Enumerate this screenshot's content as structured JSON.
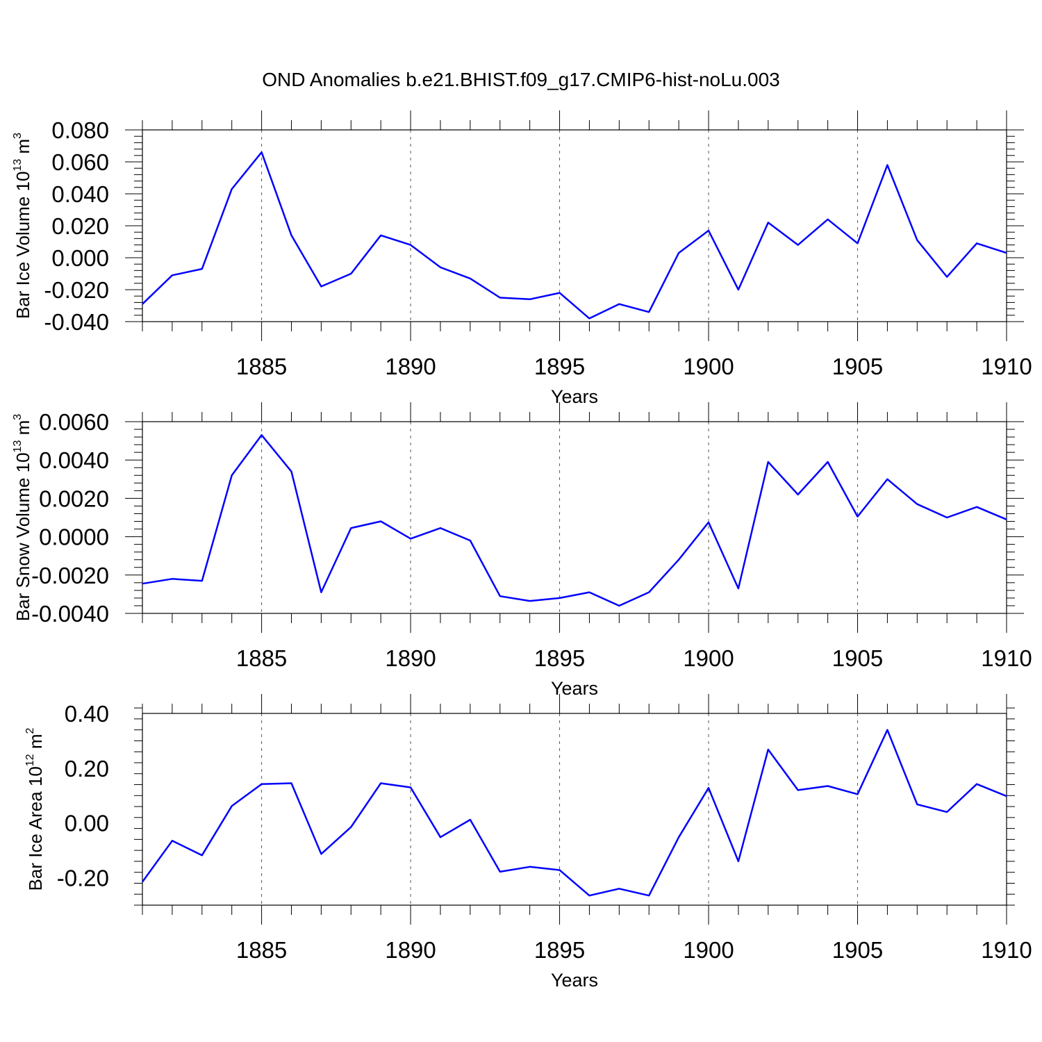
{
  "title": "OND Anomalies b.e21.BHIST.f09_g17.CMIP6-hist-noLu.003",
  "colors": {
    "line": "#0000ff",
    "axis": "#000000",
    "grid": "#555555"
  },
  "chart_data": [
    {
      "type": "line",
      "ylabel_text": "Bar Ice Volume 10",
      "ylabel_exp": "13",
      "ylabel_unit": "m",
      "ylabel_unit_exp": "3",
      "xlabel": "Years",
      "xlim": [
        1881,
        1910
      ],
      "ylim": [
        -0.04,
        0.08
      ],
      "yticks": [
        -0.04,
        -0.02,
        0.0,
        0.02,
        0.04,
        0.06,
        0.08
      ],
      "ytick_labels": [
        "-0.040",
        "-0.020",
        "0.000",
        "0.020",
        "0.040",
        "0.060",
        "0.080"
      ],
      "xticks": [
        1885,
        1890,
        1895,
        1900,
        1905,
        1910
      ],
      "xtick_labels": [
        "1885",
        "1890",
        "1895",
        "1900",
        "1905",
        "1910"
      ],
      "grid_x": [
        1885,
        1890,
        1895,
        1900,
        1905
      ],
      "x": [
        1881,
        1882,
        1883,
        1884,
        1885,
        1886,
        1887,
        1888,
        1889,
        1890,
        1891,
        1892,
        1893,
        1894,
        1895,
        1896,
        1897,
        1898,
        1899,
        1900,
        1901,
        1902,
        1903,
        1904,
        1905,
        1906,
        1907,
        1908,
        1909,
        1910
      ],
      "values": [
        -0.029,
        -0.011,
        -0.007,
        0.043,
        0.066,
        0.014,
        -0.018,
        -0.01,
        0.014,
        0.008,
        -0.006,
        -0.013,
        -0.025,
        -0.026,
        -0.022,
        -0.038,
        -0.029,
        -0.034,
        0.003,
        0.017,
        -0.02,
        0.022,
        0.008,
        0.024,
        0.009,
        0.058,
        0.011,
        -0.012,
        0.009,
        0.003
      ]
    },
    {
      "type": "line",
      "ylabel_text": "Bar Snow Volume 10",
      "ylabel_exp": "13",
      "ylabel_unit": "m",
      "ylabel_unit_exp": "3",
      "xlabel": "Years",
      "xlim": [
        1881,
        1910
      ],
      "ylim": [
        -0.004,
        0.006
      ],
      "yticks": [
        -0.004,
        -0.002,
        0.0,
        0.002,
        0.004,
        0.006
      ],
      "ytick_labels": [
        "-0.0040",
        "-0.0020",
        "0.0000",
        "0.0020",
        "0.0040",
        "0.0060"
      ],
      "xticks": [
        1885,
        1890,
        1895,
        1900,
        1905,
        1910
      ],
      "xtick_labels": [
        "1885",
        "1890",
        "1895",
        "1900",
        "1905",
        "1910"
      ],
      "grid_x": [
        1885,
        1890,
        1895,
        1900,
        1905
      ],
      "x": [
        1881,
        1882,
        1883,
        1884,
        1885,
        1886,
        1887,
        1888,
        1889,
        1890,
        1891,
        1892,
        1893,
        1894,
        1895,
        1896,
        1897,
        1898,
        1899,
        1900,
        1901,
        1902,
        1903,
        1904,
        1905,
        1906,
        1907,
        1908,
        1909,
        1910
      ],
      "values": [
        -0.00245,
        -0.0022,
        -0.0023,
        0.0032,
        0.0053,
        0.0034,
        -0.0029,
        0.00045,
        0.0008,
        -0.0001,
        0.00045,
        -0.0002,
        -0.0031,
        -0.00335,
        -0.0032,
        -0.0029,
        -0.0036,
        -0.0029,
        -0.0012,
        0.00075,
        -0.0027,
        0.0039,
        0.0022,
        0.0039,
        0.00105,
        0.003,
        0.0017,
        0.001,
        0.00155,
        0.0009
      ]
    },
    {
      "type": "line",
      "ylabel_text": "Bar Ice Area 10",
      "ylabel_exp": "12",
      "ylabel_unit": "m",
      "ylabel_unit_exp": "2",
      "xlabel": "Years",
      "xlim": [
        1881,
        1910
      ],
      "ylim": [
        -0.3,
        0.4
      ],
      "yticks": [
        -0.2,
        0.0,
        0.2,
        0.4
      ],
      "ytick_labels": [
        "-0.20",
        "0.00",
        "0.20",
        "0.40"
      ],
      "xticks": [
        1885,
        1890,
        1895,
        1900,
        1905,
        1910
      ],
      "xtick_labels": [
        "1885",
        "1890",
        "1895",
        "1900",
        "1905",
        "1910"
      ],
      "grid_x": [
        1885,
        1890,
        1895,
        1900,
        1905
      ],
      "x": [
        1881,
        1882,
        1883,
        1884,
        1885,
        1886,
        1887,
        1888,
        1889,
        1890,
        1891,
        1892,
        1893,
        1894,
        1895,
        1896,
        1897,
        1898,
        1899,
        1900,
        1901,
        1902,
        1903,
        1904,
        1905,
        1906,
        1907,
        1908,
        1909,
        1910
      ],
      "values": [
        -0.215,
        -0.065,
        -0.118,
        0.062,
        0.142,
        0.145,
        -0.113,
        -0.015,
        0.145,
        0.13,
        -0.052,
        0.012,
        -0.178,
        -0.16,
        -0.172,
        -0.265,
        -0.24,
        -0.265,
        -0.052,
        0.128,
        -0.14,
        0.268,
        0.12,
        0.135,
        0.105,
        0.34,
        0.068,
        0.04,
        0.142,
        0.098
      ]
    }
  ]
}
